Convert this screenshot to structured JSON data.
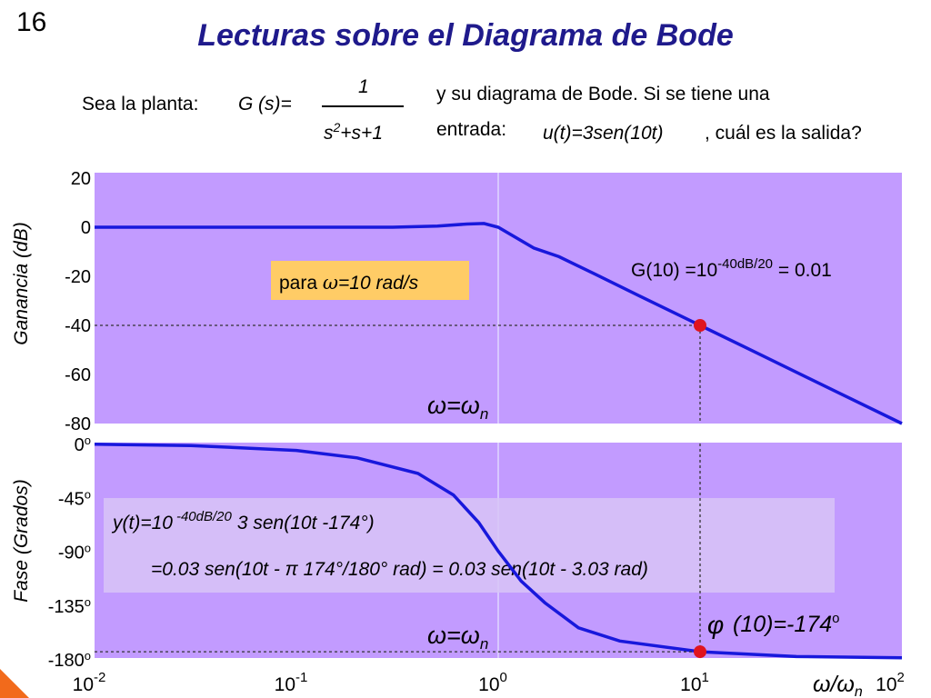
{
  "slide_number": "16",
  "title": "Lecturas sobre el Diagrama de Bode",
  "intro": {
    "plant_prefix": "Sea la planta:",
    "plant_g": "G",
    "plant_s": "(s)=",
    "numerator": "1",
    "den_s": "s",
    "den_exp": "2",
    "den_rest": "+s+1",
    "line1": "y su diagrama de Bode. Si se tiene una",
    "line2": "entrada:",
    "input_fn": "u(t)=3sen(10t)",
    "question": ", cuál es la salida?"
  },
  "colors": {
    "plot_bg": "#c29bff",
    "line": "#1818dc",
    "marker": "#e0141e",
    "note_bg": "#ffcc66",
    "box_bg": "#d8c4f7"
  },
  "chart_data": [
    {
      "type": "line",
      "name": "magnitude",
      "ylabel": "Ganancia (dB)",
      "xscale": "log",
      "xlim": [
        0.01,
        100
      ],
      "ylim": [
        -80,
        20
      ],
      "yticks": [
        "20",
        "0",
        "-20",
        "-40",
        "-60",
        "-80"
      ],
      "series": [
        {
          "x": [
            0.01,
            0.1,
            0.3,
            0.5,
            0.7,
            0.85,
            1.0,
            1.5,
            2,
            3,
            5,
            10,
            20,
            50,
            100
          ],
          "values": [
            0,
            0,
            0,
            0.5,
            1.3,
            1.5,
            0,
            -8.5,
            -12,
            -19,
            -28,
            -40,
            -52,
            -68,
            -80
          ]
        }
      ],
      "marker": {
        "x": 10,
        "y": -40
      },
      "annotations": {
        "note": "para ω=10 rad/s",
        "gain_main": "G(10) =10",
        "gain_exp": "-40dB/20",
        "gain_tail": " = 0.01",
        "omega_n": "ω=ω"
      }
    },
    {
      "type": "line",
      "name": "phase",
      "ylabel": "Fase (Grados)",
      "xscale": "log",
      "xlim": [
        0.01,
        100
      ],
      "ylim": [
        -180,
        0
      ],
      "yticks": [
        "0º",
        "-45º",
        "-90º",
        "-135º",
        "-180º"
      ],
      "xticks": [
        "10-2",
        "10-1",
        "100",
        "101",
        "102"
      ],
      "xlabel": "ω/ω",
      "xlabel_sub": "n",
      "series": [
        {
          "x": [
            0.01,
            0.03,
            0.1,
            0.2,
            0.4,
            0.6,
            0.8,
            1.0,
            1.3,
            1.7,
            2.5,
            4,
            10,
            30,
            100
          ],
          "values": [
            -0.6,
            -1.7,
            -5.8,
            -12,
            -25,
            -43,
            -66,
            -90,
            -115,
            -133,
            -154,
            -165,
            -174,
            -178,
            -179
          ]
        }
      ],
      "marker": {
        "x": 10,
        "y": -174
      },
      "annotations": {
        "y_eq1_a": "y(t)=10",
        "y_eq1_exp": "-40dB/20",
        "y_eq1_b": "3 sen(10t -174°)",
        "y_eq2": "=0.03 sen(10t - π 174°/180° rad) = 0.03 sen(10t - 3.03 rad)",
        "phase_phi": "φ",
        "phase_text": "(10)=-174",
        "phase_deg": "o",
        "omega_n": "ω=ω"
      }
    }
  ]
}
